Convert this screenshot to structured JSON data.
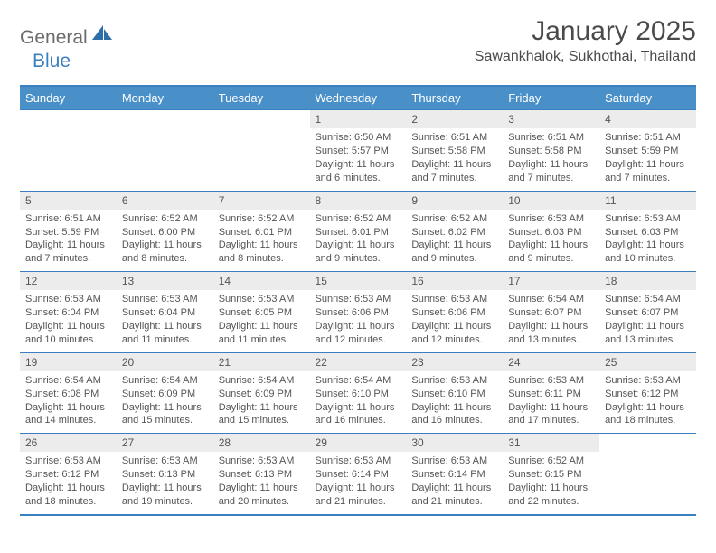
{
  "logo": {
    "part1": "General",
    "part2": "Blue"
  },
  "title": "January 2025",
  "location": "Sawankhalok, Sukhothai, Thailand",
  "colors": {
    "header_bg": "#4a90c8",
    "border": "#3a7fbf",
    "daynum_bg": "#ececec",
    "text": "#4a4a4a"
  },
  "weekdays": [
    "Sunday",
    "Monday",
    "Tuesday",
    "Wednesday",
    "Thursday",
    "Friday",
    "Saturday"
  ],
  "weeks": [
    [
      {
        "num": "",
        "sunrise": "",
        "sunset": "",
        "daylight": ""
      },
      {
        "num": "",
        "sunrise": "",
        "sunset": "",
        "daylight": ""
      },
      {
        "num": "",
        "sunrise": "",
        "sunset": "",
        "daylight": ""
      },
      {
        "num": "1",
        "sunrise": "Sunrise: 6:50 AM",
        "sunset": "Sunset: 5:57 PM",
        "daylight": "Daylight: 11 hours and 6 minutes."
      },
      {
        "num": "2",
        "sunrise": "Sunrise: 6:51 AM",
        "sunset": "Sunset: 5:58 PM",
        "daylight": "Daylight: 11 hours and 7 minutes."
      },
      {
        "num": "3",
        "sunrise": "Sunrise: 6:51 AM",
        "sunset": "Sunset: 5:58 PM",
        "daylight": "Daylight: 11 hours and 7 minutes."
      },
      {
        "num": "4",
        "sunrise": "Sunrise: 6:51 AM",
        "sunset": "Sunset: 5:59 PM",
        "daylight": "Daylight: 11 hours and 7 minutes."
      }
    ],
    [
      {
        "num": "5",
        "sunrise": "Sunrise: 6:51 AM",
        "sunset": "Sunset: 5:59 PM",
        "daylight": "Daylight: 11 hours and 7 minutes."
      },
      {
        "num": "6",
        "sunrise": "Sunrise: 6:52 AM",
        "sunset": "Sunset: 6:00 PM",
        "daylight": "Daylight: 11 hours and 8 minutes."
      },
      {
        "num": "7",
        "sunrise": "Sunrise: 6:52 AM",
        "sunset": "Sunset: 6:01 PM",
        "daylight": "Daylight: 11 hours and 8 minutes."
      },
      {
        "num": "8",
        "sunrise": "Sunrise: 6:52 AM",
        "sunset": "Sunset: 6:01 PM",
        "daylight": "Daylight: 11 hours and 9 minutes."
      },
      {
        "num": "9",
        "sunrise": "Sunrise: 6:52 AM",
        "sunset": "Sunset: 6:02 PM",
        "daylight": "Daylight: 11 hours and 9 minutes."
      },
      {
        "num": "10",
        "sunrise": "Sunrise: 6:53 AM",
        "sunset": "Sunset: 6:03 PM",
        "daylight": "Daylight: 11 hours and 9 minutes."
      },
      {
        "num": "11",
        "sunrise": "Sunrise: 6:53 AM",
        "sunset": "Sunset: 6:03 PM",
        "daylight": "Daylight: 11 hours and 10 minutes."
      }
    ],
    [
      {
        "num": "12",
        "sunrise": "Sunrise: 6:53 AM",
        "sunset": "Sunset: 6:04 PM",
        "daylight": "Daylight: 11 hours and 10 minutes."
      },
      {
        "num": "13",
        "sunrise": "Sunrise: 6:53 AM",
        "sunset": "Sunset: 6:04 PM",
        "daylight": "Daylight: 11 hours and 11 minutes."
      },
      {
        "num": "14",
        "sunrise": "Sunrise: 6:53 AM",
        "sunset": "Sunset: 6:05 PM",
        "daylight": "Daylight: 11 hours and 11 minutes."
      },
      {
        "num": "15",
        "sunrise": "Sunrise: 6:53 AM",
        "sunset": "Sunset: 6:06 PM",
        "daylight": "Daylight: 11 hours and 12 minutes."
      },
      {
        "num": "16",
        "sunrise": "Sunrise: 6:53 AM",
        "sunset": "Sunset: 6:06 PM",
        "daylight": "Daylight: 11 hours and 12 minutes."
      },
      {
        "num": "17",
        "sunrise": "Sunrise: 6:54 AM",
        "sunset": "Sunset: 6:07 PM",
        "daylight": "Daylight: 11 hours and 13 minutes."
      },
      {
        "num": "18",
        "sunrise": "Sunrise: 6:54 AM",
        "sunset": "Sunset: 6:07 PM",
        "daylight": "Daylight: 11 hours and 13 minutes."
      }
    ],
    [
      {
        "num": "19",
        "sunrise": "Sunrise: 6:54 AM",
        "sunset": "Sunset: 6:08 PM",
        "daylight": "Daylight: 11 hours and 14 minutes."
      },
      {
        "num": "20",
        "sunrise": "Sunrise: 6:54 AM",
        "sunset": "Sunset: 6:09 PM",
        "daylight": "Daylight: 11 hours and 15 minutes."
      },
      {
        "num": "21",
        "sunrise": "Sunrise: 6:54 AM",
        "sunset": "Sunset: 6:09 PM",
        "daylight": "Daylight: 11 hours and 15 minutes."
      },
      {
        "num": "22",
        "sunrise": "Sunrise: 6:54 AM",
        "sunset": "Sunset: 6:10 PM",
        "daylight": "Daylight: 11 hours and 16 minutes."
      },
      {
        "num": "23",
        "sunrise": "Sunrise: 6:53 AM",
        "sunset": "Sunset: 6:10 PM",
        "daylight": "Daylight: 11 hours and 16 minutes."
      },
      {
        "num": "24",
        "sunrise": "Sunrise: 6:53 AM",
        "sunset": "Sunset: 6:11 PM",
        "daylight": "Daylight: 11 hours and 17 minutes."
      },
      {
        "num": "25",
        "sunrise": "Sunrise: 6:53 AM",
        "sunset": "Sunset: 6:12 PM",
        "daylight": "Daylight: 11 hours and 18 minutes."
      }
    ],
    [
      {
        "num": "26",
        "sunrise": "Sunrise: 6:53 AM",
        "sunset": "Sunset: 6:12 PM",
        "daylight": "Daylight: 11 hours and 18 minutes."
      },
      {
        "num": "27",
        "sunrise": "Sunrise: 6:53 AM",
        "sunset": "Sunset: 6:13 PM",
        "daylight": "Daylight: 11 hours and 19 minutes."
      },
      {
        "num": "28",
        "sunrise": "Sunrise: 6:53 AM",
        "sunset": "Sunset: 6:13 PM",
        "daylight": "Daylight: 11 hours and 20 minutes."
      },
      {
        "num": "29",
        "sunrise": "Sunrise: 6:53 AM",
        "sunset": "Sunset: 6:14 PM",
        "daylight": "Daylight: 11 hours and 21 minutes."
      },
      {
        "num": "30",
        "sunrise": "Sunrise: 6:53 AM",
        "sunset": "Sunset: 6:14 PM",
        "daylight": "Daylight: 11 hours and 21 minutes."
      },
      {
        "num": "31",
        "sunrise": "Sunrise: 6:52 AM",
        "sunset": "Sunset: 6:15 PM",
        "daylight": "Daylight: 11 hours and 22 minutes."
      },
      {
        "num": "",
        "sunrise": "",
        "sunset": "",
        "daylight": ""
      }
    ]
  ]
}
